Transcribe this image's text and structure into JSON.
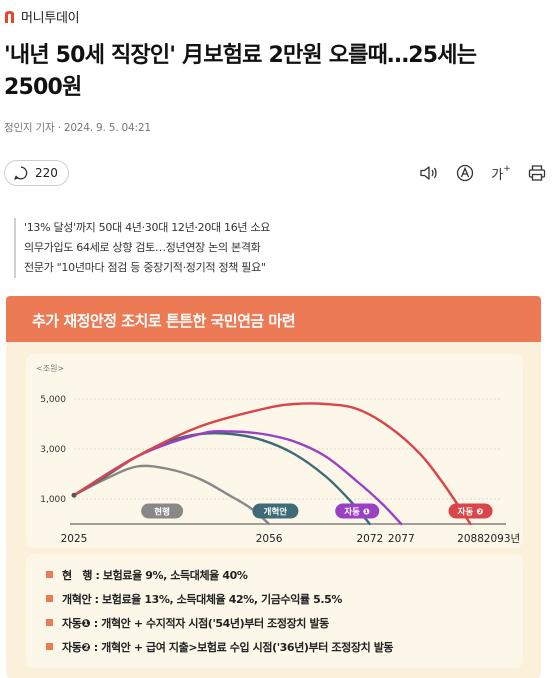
{
  "brand": {
    "name": "머니투데이",
    "logo_letter": "n"
  },
  "article": {
    "headline_line1": "'내년 50세 직장인' 月보험료 2만원 오를때…25세는",
    "headline_line2": "2500원",
    "byline": "정인지 기자 · 2024. 9. 5. 04:21"
  },
  "toolbar": {
    "comment_count": "220",
    "font_size_label": "가"
  },
  "summary": [
    "'13% 달성'까지 50대 4년·30대 12년·20대 16년 소요",
    "의무가입도 64세로 상향 검토…정년연장 논의 본격화",
    "전문가 \"10년마다 점검 등 중장기적·정기적 정책 필요\""
  ],
  "colors": {
    "banner": "#ec7a55",
    "panel": "#fbf0da",
    "current": "#888888",
    "reform": "#3d6b78",
    "auto1": "#9b3fc4",
    "auto2": "#d94548"
  },
  "infographic": {
    "title": "추가 재정안정 조치로 튼튼한 국민연금 마련",
    "unit": "<조원>",
    "legend": [
      {
        "label": "현행"
      },
      {
        "label": "개혁안"
      },
      {
        "label": "자동 ❶"
      },
      {
        "label": "자동 ❷"
      }
    ],
    "notes": [
      {
        "key": "현　행",
        "text": ": 보험료율 9%, 소득대체율 40%"
      },
      {
        "key": "개혁안",
        "text": ": 보험료율 13%, 소득대체율 42%, 기금수익률 5.5%"
      },
      {
        "key": "자동❶",
        "text": ": 개혁안 + 수지적자 시점('54년)부터 조정장치 발동"
      },
      {
        "key": "자동❷",
        "text": ": 개혁안 + 급여 지출>보험료 수입 시점('36년)부터 조정장치 발동"
      }
    ]
  },
  "chart_data": {
    "type": "line",
    "title": "추가 재정안정 조치로 튼튼한 국민연금 마련",
    "ylabel": "<조원>",
    "xlabel": "",
    "x_ticks": [
      "2025",
      "2056",
      "2072",
      "2077",
      "2088",
      "2093년"
    ],
    "y_ticks": [
      "1,000",
      "3,000",
      "5,000"
    ],
    "series": [
      {
        "name": "현행",
        "x": [
          2025,
          2030,
          2035,
          2040,
          2045,
          2050,
          2053,
          2056
        ],
        "y": [
          1150,
          1800,
          2300,
          2200,
          1800,
          1100,
          650,
          0
        ]
      },
      {
        "name": "개혁안",
        "x": [
          2025,
          2030,
          2035,
          2040,
          2045,
          2050,
          2055,
          2060,
          2065,
          2069,
          2072
        ],
        "y": [
          1150,
          1900,
          2700,
          3300,
          3600,
          3600,
          3350,
          2800,
          1900,
          900,
          0
        ]
      },
      {
        "name": "자동 ❶",
        "x": [
          2025,
          2035,
          2045,
          2050,
          2055,
          2060,
          2065,
          2070,
          2074,
          2077
        ],
        "y": [
          1150,
          2700,
          3600,
          3700,
          3600,
          3300,
          2700,
          1700,
          800,
          0
        ]
      },
      {
        "name": "자동 ❷",
        "x": [
          2025,
          2035,
          2045,
          2055,
          2060,
          2065,
          2070,
          2075,
          2080,
          2084,
          2088
        ],
        "y": [
          1150,
          2700,
          3900,
          4600,
          4800,
          4800,
          4600,
          3900,
          2800,
          1500,
          0
        ]
      }
    ]
  }
}
